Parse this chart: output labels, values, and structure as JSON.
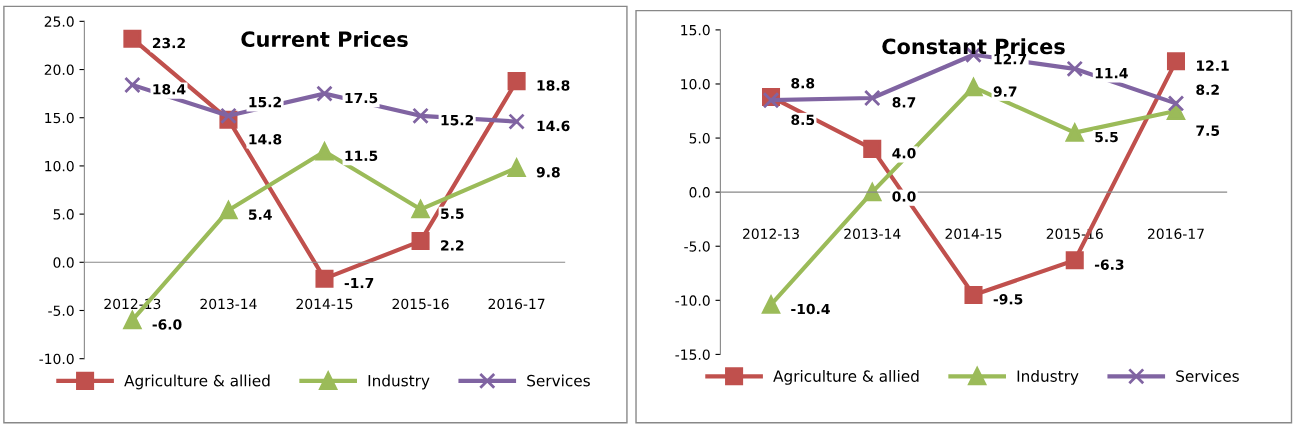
{
  "chart_data": [
    {
      "type": "line",
      "title": "Current Prices",
      "categories": [
        "2012-13",
        "2013-14",
        "2014-15",
        "2015-16",
        "2016-17"
      ],
      "series": [
        {
          "name": "Agriculture & allied",
          "color": "#c0504d",
          "marker": "square",
          "values": [
            23.2,
            14.8,
            -1.7,
            2.2,
            18.8
          ],
          "value_labels": [
            "23.2",
            "14.8",
            "-1.7",
            "2.2",
            "18.8"
          ]
        },
        {
          "name": "Industry",
          "color": "#9bbb59",
          "marker": "triangle",
          "values": [
            -6.0,
            5.4,
            11.5,
            5.5,
            9.8
          ],
          "value_labels": [
            "-6.0",
            "5.4",
            "11.5",
            "5.5",
            "9.8"
          ]
        },
        {
          "name": "Services",
          "color": "#8064a2",
          "marker": "cross",
          "values": [
            18.4,
            15.2,
            17.5,
            15.2,
            14.6
          ],
          "value_labels": [
            "18.4",
            "15.2",
            "17.5",
            "15.2",
            "14.6"
          ]
        }
      ],
      "ylim": [
        -10,
        25
      ],
      "yticks": [
        {
          "value": -10,
          "label": "-10.0"
        },
        {
          "value": -5,
          "label": "-5.0"
        },
        {
          "value": 0,
          "label": "0.0"
        },
        {
          "value": 5,
          "label": "5.0"
        },
        {
          "value": 10,
          "label": "10.0"
        },
        {
          "value": 15,
          "label": "15.0"
        },
        {
          "value": 20,
          "label": "20.0"
        },
        {
          "value": 25,
          "label": "25.0"
        }
      ],
      "legend": "bottom"
    },
    {
      "type": "line",
      "title": "Constant Prices",
      "categories": [
        "2012-13",
        "2013-14",
        "2014-15",
        "2015-16",
        "2016-17"
      ],
      "series": [
        {
          "name": "Agriculture & allied",
          "color": "#c0504d",
          "marker": "square",
          "values": [
            8.8,
            4.0,
            -9.5,
            -6.3,
            12.1
          ],
          "value_labels": [
            "8.8",
            "4.0",
            "-9.5",
            "-6.3",
            "12.1"
          ]
        },
        {
          "name": "Industry",
          "color": "#9bbb59",
          "marker": "triangle",
          "values": [
            -10.4,
            0.0,
            9.7,
            5.5,
            7.5
          ],
          "value_labels": [
            "-10.4",
            "0.0",
            "9.7",
            "5.5",
            "7.5"
          ]
        },
        {
          "name": "Services",
          "color": "#8064a2",
          "marker": "cross",
          "values": [
            8.5,
            8.7,
            12.7,
            11.4,
            8.2
          ],
          "value_labels": [
            "8.5",
            "8.7",
            "12.7",
            "11.4",
            "8.2"
          ]
        }
      ],
      "ylim": [
        -15,
        15
      ],
      "yticks": [
        {
          "value": -15,
          "label": "-15.0"
        },
        {
          "value": -10,
          "label": "-10.0"
        },
        {
          "value": -5,
          "label": "-5.0"
        },
        {
          "value": 0,
          "label": "0.0"
        },
        {
          "value": 5,
          "label": "5.0"
        },
        {
          "value": 10,
          "label": "10.0"
        },
        {
          "value": 15,
          "label": "15.0"
        }
      ],
      "legend": "bottom"
    }
  ]
}
